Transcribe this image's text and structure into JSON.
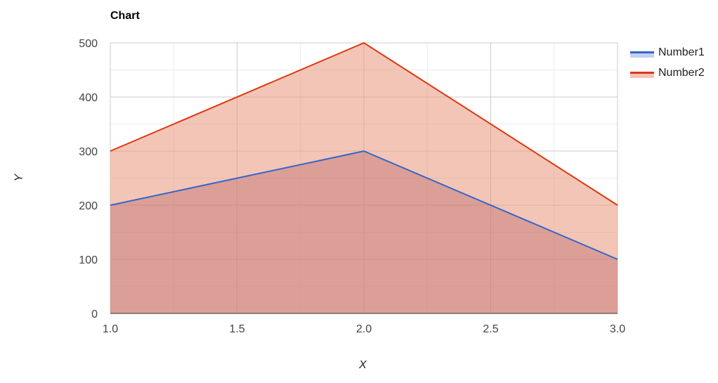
{
  "chart_data": {
    "type": "area",
    "title": "Chart",
    "xlabel": "X",
    "ylabel": "Y",
    "x": [
      1.0,
      2.0,
      3.0
    ],
    "series": [
      {
        "name": "Number1",
        "values": [
          200,
          300,
          100
        ],
        "color": "#3366cc",
        "fill": "#8a4466"
      },
      {
        "name": "Number2",
        "values": [
          300,
          500,
          200
        ],
        "color": "#dc3912",
        "fill": "#e9967a"
      }
    ],
    "xlim": [
      1.0,
      3.0
    ],
    "ylim": [
      0,
      500
    ],
    "xticks": [
      "1.0",
      "1.5",
      "2.0",
      "2.5",
      "3.0"
    ],
    "yticks": [
      "0",
      "100",
      "200",
      "300",
      "400",
      "500"
    ],
    "grid": true,
    "legend_position": "right"
  }
}
